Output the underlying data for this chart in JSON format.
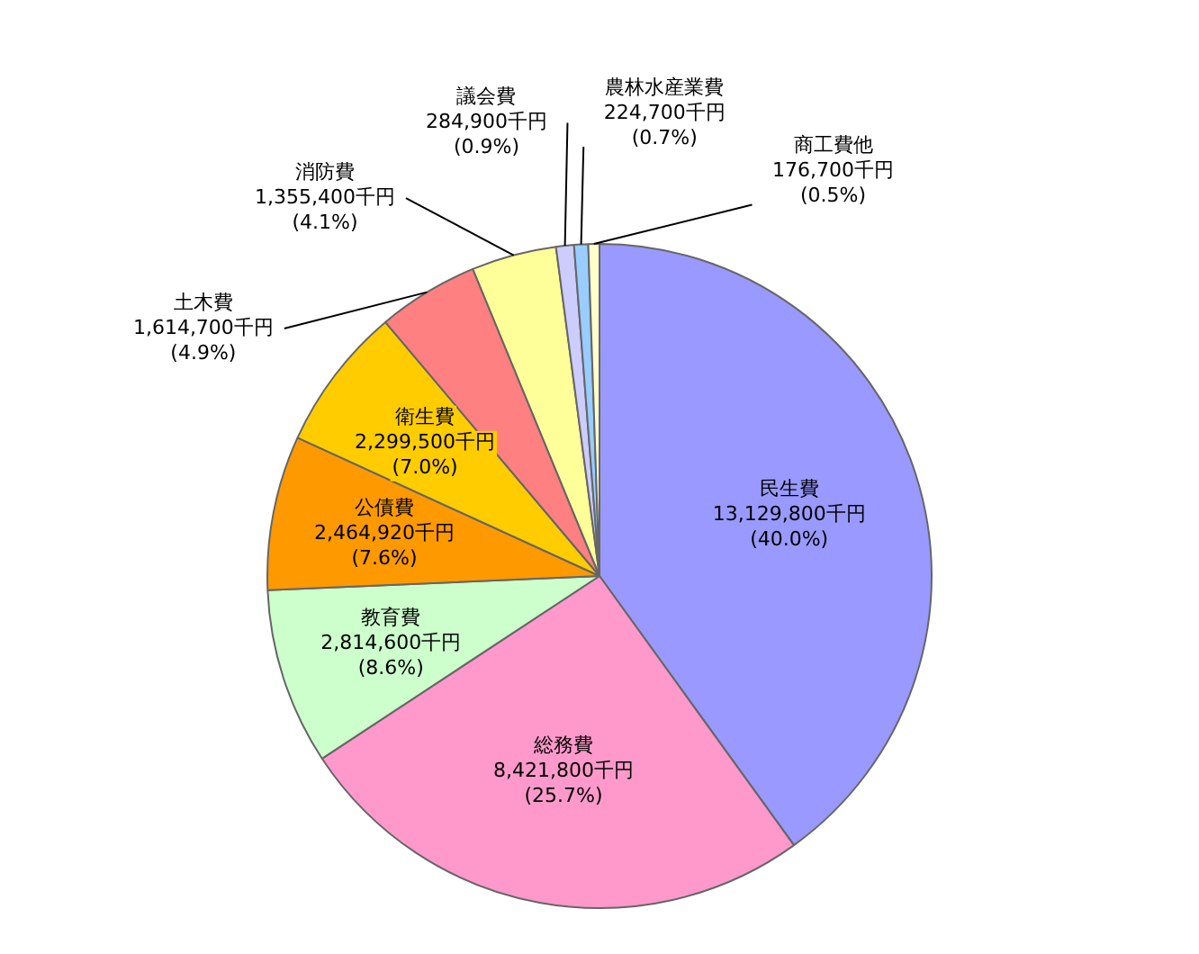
{
  "chart_data": {
    "type": "pie",
    "categories": [
      "民生費",
      "総務費",
      "教育費",
      "公債費",
      "衛生費",
      "土木費",
      "消防費",
      "議会費",
      "農林水産業費",
      "商工費他"
    ],
    "values": [
      13129800,
      8421800,
      2814600,
      2464920,
      2299500,
      1614700,
      1355400,
      284900,
      224700,
      176700
    ],
    "value_labels": [
      "13,129,800千円\n(40.0%)",
      "8,421,800千円\n(25.7%)",
      "2,814,600千円\n(8.6%)",
      "2,464,920千円\n(7.6%)",
      "2,299,500千円\n(7.0%)",
      "1,614,700千円\n(4.9%)",
      "1,355,400千円\n(4.1%)",
      "284,900千円\n(0.9%)",
      "224,700千円\n(0.7%)",
      "176,700千円\n(0.5%)"
    ],
    "colors": [
      "#9999ff",
      "#ff99cc",
      "#ccffcc",
      "#ff9900",
      "#ffcc00",
      "#ff8080",
      "#ffff99",
      "#ccccff",
      "#99ccff",
      "#ffffcc"
    ]
  }
}
